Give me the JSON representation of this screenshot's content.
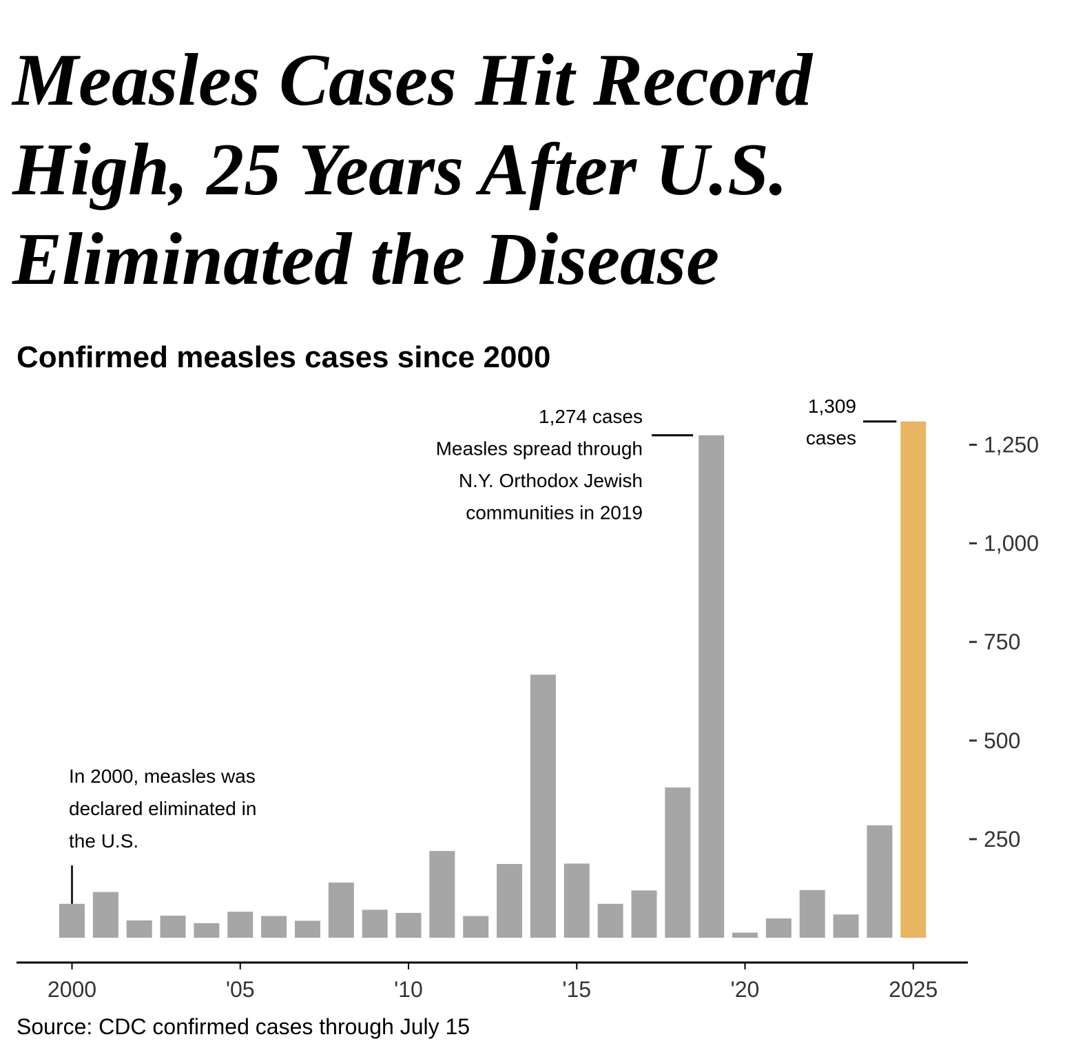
{
  "headline": {
    "line1": "Measles Cases Hit Record",
    "line2": "High, 25 Years After U.S.",
    "line3": "Eliminated the Disease"
  },
  "subtitle": "Confirmed measles cases since 2000",
  "source": "Source: CDC confirmed cases through July 15",
  "colors": {
    "bar": "#a6a6a6",
    "highlight": "#e8b563",
    "axis": "#000000",
    "tick_text": "#333333"
  },
  "chart_data": {
    "type": "bar",
    "title": "Confirmed measles cases since 2000",
    "xlabel": "",
    "ylabel": "",
    "categories": [
      2000,
      2001,
      2002,
      2003,
      2004,
      2005,
      2006,
      2007,
      2008,
      2009,
      2010,
      2011,
      2012,
      2013,
      2014,
      2015,
      2016,
      2017,
      2018,
      2019,
      2020,
      2021,
      2022,
      2023,
      2024,
      2025
    ],
    "values": [
      86,
      116,
      44,
      56,
      37,
      66,
      55,
      43,
      140,
      71,
      63,
      220,
      55,
      187,
      667,
      188,
      86,
      120,
      381,
      1274,
      13,
      49,
      121,
      59,
      285,
      1309
    ],
    "highlight_category": 2025,
    "ylim": [
      0,
      1309
    ],
    "y_axis_position": "right",
    "y_ticks": [
      {
        "value": 250,
        "label": "250"
      },
      {
        "value": 500,
        "label": "500"
      },
      {
        "value": 750,
        "label": "750"
      },
      {
        "value": 1000,
        "label": "1,000"
      },
      {
        "value": 1250,
        "label": "1,250"
      }
    ],
    "x_ticks": [
      {
        "value": 2000,
        "label": "2000"
      },
      {
        "value": 2005,
        "label": "'05"
      },
      {
        "value": 2010,
        "label": "'10"
      },
      {
        "value": 2015,
        "label": "'15"
      },
      {
        "value": 2020,
        "label": "'20"
      },
      {
        "value": 2025,
        "label": "2025"
      }
    ],
    "annotations": {
      "elimination": {
        "year": 2000,
        "lines": [
          "In 2000, measles was",
          "declared eliminated in",
          "the U.S."
        ]
      },
      "peak_2019": {
        "year": 2019,
        "value": 1274,
        "lines": [
          "1,274 cases",
          "Measles spread through",
          "N.Y. Orthodox Jewish",
          "communities in 2019"
        ]
      },
      "record_2025": {
        "year": 2025,
        "value": 1309,
        "lines": [
          "1,309",
          "cases"
        ]
      }
    }
  }
}
